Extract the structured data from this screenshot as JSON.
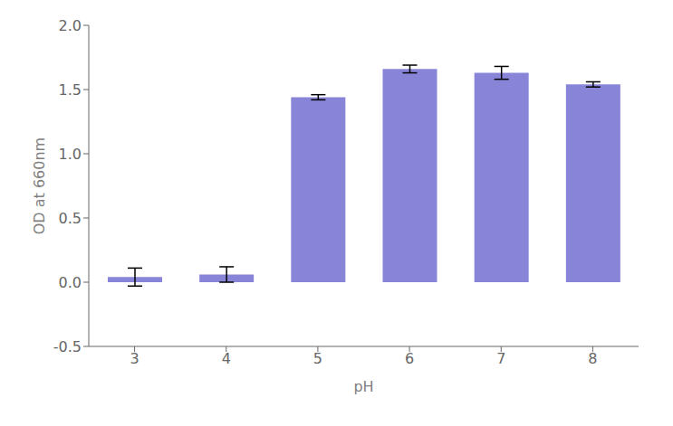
{
  "chart_data": {
    "type": "bar",
    "categories": [
      "3",
      "4",
      "5",
      "6",
      "7",
      "8"
    ],
    "values": [
      0.04,
      0.06,
      1.44,
      1.66,
      1.63,
      1.54
    ],
    "errors": [
      0.07,
      0.06,
      0.02,
      0.03,
      0.05,
      0.02
    ],
    "xlabel": "pH",
    "ylabel": "OD at 660nm",
    "ylim": [
      -0.5,
      2.0
    ],
    "yticks": [
      -0.5,
      {
        "value": 0,
        "label": "0.0"
      },
      0.5,
      {
        "value": 1,
        "label": "1.0"
      },
      1.5,
      {
        "value": 2,
        "label": "2.0"
      }
    ],
    "color": "#8884d8",
    "grid": false
  }
}
